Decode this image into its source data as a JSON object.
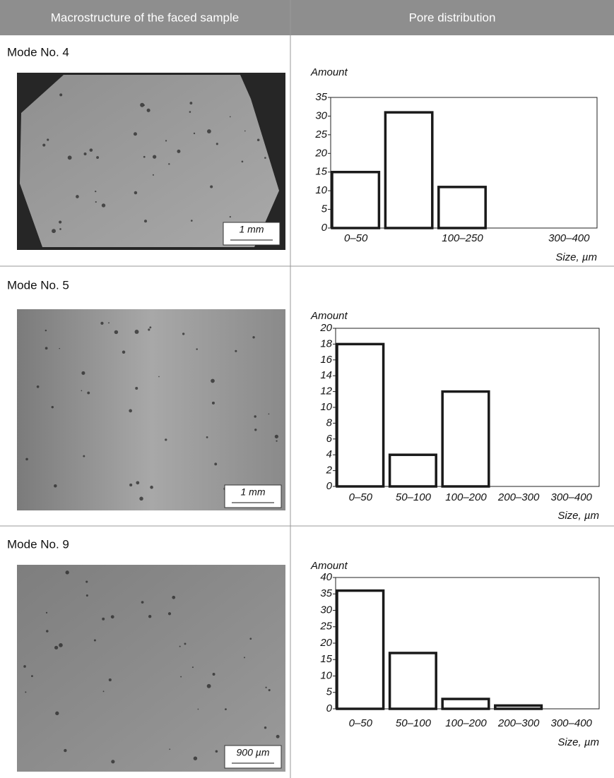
{
  "table": {
    "header": [
      "Macrostructure of the faced sample",
      "Pore distribution"
    ],
    "rows": [
      {
        "mode": "Mode No. 4",
        "scale": "1 mm"
      },
      {
        "mode": "Mode No. 5",
        "scale": "1 mm"
      },
      {
        "mode": "Mode No. 9",
        "scale": "900 µm"
      }
    ]
  },
  "chart_data": [
    {
      "type": "bar",
      "y_label": "Amount",
      "x_label": "Size, µm",
      "categories": [
        "0–50",
        null,
        "100–250",
        null,
        "300–400"
      ],
      "values": [
        15,
        31,
        11,
        0,
        0
      ],
      "color": "#ffffff",
      "edgecolor": "#1a1a1a",
      "ylim": [
        0,
        35
      ],
      "yticks": [
        0,
        5,
        10,
        15,
        20,
        25,
        30,
        35
      ]
    },
    {
      "type": "bar",
      "y_label": "Amount",
      "x_label": "Size, µm",
      "categories": [
        "0–50",
        "50–100",
        "100–200",
        "200–300",
        "300–400"
      ],
      "values": [
        18,
        4,
        12,
        0,
        0
      ],
      "color": "#ffffff",
      "edgecolor": "#1a1a1a",
      "ylim": [
        0,
        20
      ],
      "yticks": [
        0,
        2,
        4,
        6,
        8,
        10,
        12,
        14,
        16,
        18,
        20
      ]
    },
    {
      "type": "bar",
      "y_label": "Amount",
      "x_label": "Size, µm",
      "categories": [
        "0–50",
        "50–100",
        "100–200",
        "200–300",
        "300–400"
      ],
      "values": [
        36,
        17,
        3,
        1,
        0
      ],
      "color": "#ffffff",
      "edgecolor": "#1a1a1a",
      "ylim": [
        0,
        40
      ],
      "yticks": [
        0,
        5,
        10,
        15,
        20,
        25,
        30,
        35,
        40
      ]
    }
  ]
}
